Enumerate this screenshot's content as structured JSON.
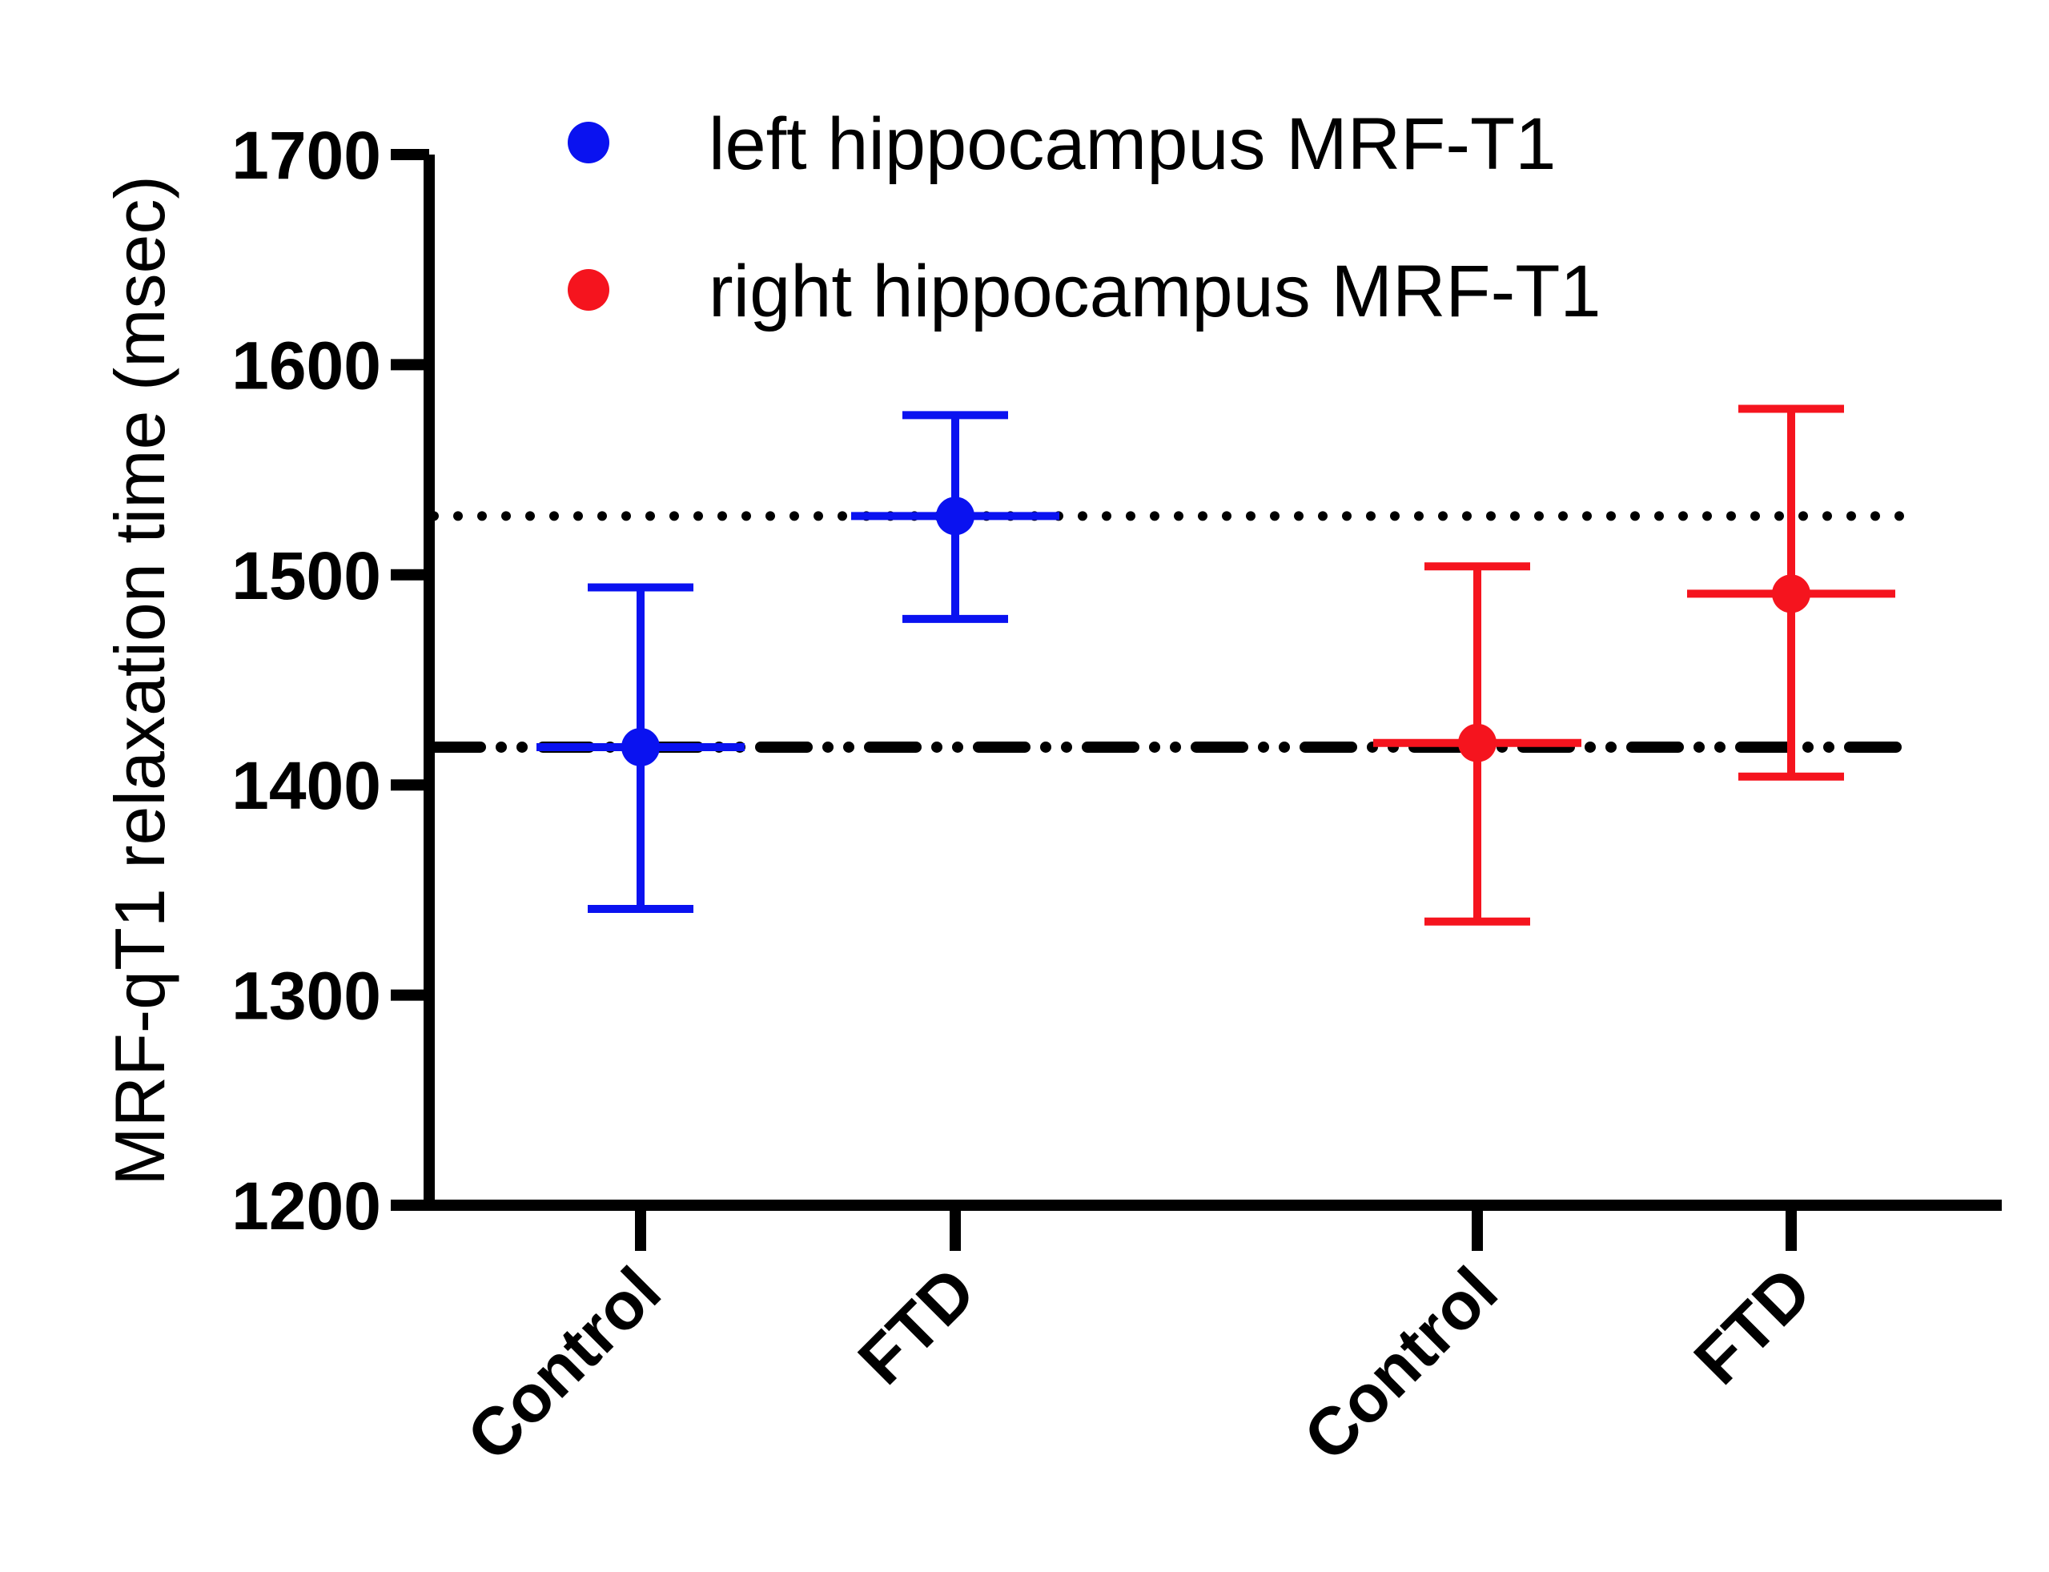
{
  "chart_data": {
    "type": "scatter",
    "ylabel": "MRF-qT1 relaxation time (msec)",
    "ylim": [
      1200,
      1700
    ],
    "yticks": [
      "1200",
      "1300",
      "1400",
      "1500",
      "1600",
      "1700"
    ],
    "categories": [
      "Control",
      "FTD",
      "Control",
      "FTD"
    ],
    "grid": false,
    "legend_position": "top",
    "series": [
      {
        "name": "left hippocampus MRF-T1",
        "color": "#0a12f0",
        "points": [
          {
            "category": 0,
            "mean": 1418,
            "lower": 1341,
            "upper": 1494
          },
          {
            "category": 1,
            "mean": 1528,
            "lower": 1479,
            "upper": 1576
          }
        ]
      },
      {
        "name": "right hippocampus MRF-T1",
        "color": "#f5141e",
        "points": [
          {
            "category": 2,
            "mean": 1420,
            "lower": 1335,
            "upper": 1504
          },
          {
            "category": 3,
            "mean": 1491,
            "lower": 1404,
            "upper": 1579
          }
        ]
      }
    ],
    "reference_lines": [
      {
        "style": "dotted",
        "value": 1528
      },
      {
        "style": "dash-dot-dot",
        "value": 1418
      }
    ]
  }
}
